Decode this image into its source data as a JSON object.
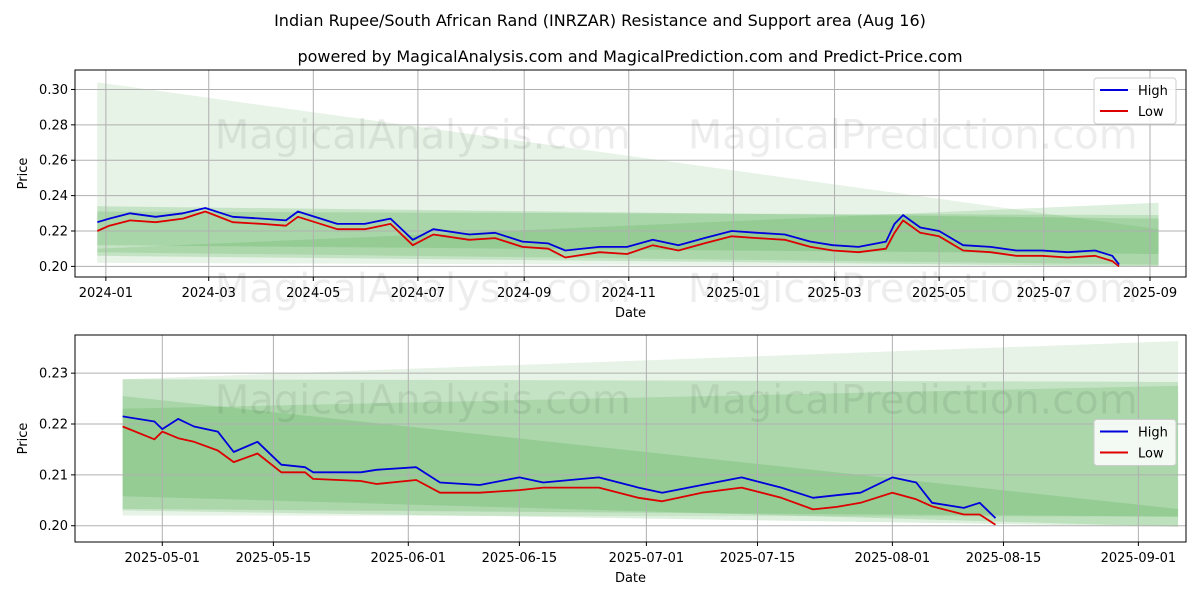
{
  "title": "Indian Rupee/South African Rand (INRZAR) Resistance and Support area (Aug 16)",
  "subtitle": "powered by MagicalAnalysis.com and MagicalPrediction.com and Predict-Price.com",
  "watermarks": [
    "MagicalAnalysis.com",
    "MagicalPrediction.com"
  ],
  "colors": {
    "high": "#0000dd",
    "low": "#dd0000",
    "band": "#2e9a2e",
    "grid": "#b0b0b0"
  },
  "chart_data": [
    {
      "type": "line",
      "xlabel": "Date",
      "ylabel": "Price",
      "xlim": [
        "2023-12-14",
        "2025-09-22"
      ],
      "ylim": [
        0.194,
        0.311
      ],
      "x_ticks": [
        "2024-01-01",
        "2024-03-01",
        "2024-05-01",
        "2024-07-01",
        "2024-09-01",
        "2024-11-01",
        "2025-01-01",
        "2025-03-01",
        "2025-05-01",
        "2025-07-01",
        "2025-09-01"
      ],
      "x_tick_labels": [
        "2024-01",
        "2024-03",
        "2024-05",
        "2024-07",
        "2024-09",
        "2024-11",
        "2025-01",
        "2025-03",
        "2025-05",
        "2025-07",
        "2025-09"
      ],
      "y_ticks": [
        0.2,
        0.22,
        0.24,
        0.26,
        0.28,
        0.3
      ],
      "y_tick_labels": [
        "0.20",
        "0.22",
        "0.24",
        "0.26",
        "0.28",
        "0.30"
      ],
      "grid": true,
      "legend": "top-right",
      "series": [
        {
          "name": "High",
          "x": [
            "2023-12-27",
            "2024-01-03",
            "2024-01-15",
            "2024-01-30",
            "2024-02-15",
            "2024-02-28",
            "2024-03-15",
            "2024-04-01",
            "2024-04-15",
            "2024-04-22",
            "2024-05-15",
            "2024-05-31",
            "2024-06-15",
            "2024-06-28",
            "2024-07-10",
            "2024-07-31",
            "2024-08-15",
            "2024-08-31",
            "2024-09-15",
            "2024-09-25",
            "2024-10-15",
            "2024-10-31",
            "2024-11-15",
            "2024-11-30",
            "2024-12-15",
            "2024-12-31",
            "2025-01-15",
            "2025-01-31",
            "2025-02-15",
            "2025-02-28",
            "2025-03-15",
            "2025-03-31",
            "2025-04-05",
            "2025-04-10",
            "2025-04-20",
            "2025-05-01",
            "2025-05-15",
            "2025-05-31",
            "2025-06-15",
            "2025-06-30",
            "2025-07-15",
            "2025-07-31",
            "2025-08-10",
            "2025-08-14"
          ],
          "values": [
            0.225,
            0.227,
            0.23,
            0.228,
            0.23,
            0.233,
            0.228,
            0.227,
            0.226,
            0.231,
            0.224,
            0.224,
            0.227,
            0.215,
            0.221,
            0.218,
            0.219,
            0.214,
            0.213,
            0.209,
            0.211,
            0.211,
            0.215,
            0.212,
            0.216,
            0.22,
            0.219,
            0.218,
            0.214,
            0.212,
            0.211,
            0.214,
            0.224,
            0.229,
            0.222,
            0.22,
            0.212,
            0.211,
            0.209,
            0.209,
            0.208,
            0.209,
            0.206,
            0.201
          ]
        },
        {
          "name": "Low",
          "x": [
            "2023-12-27",
            "2024-01-03",
            "2024-01-15",
            "2024-01-30",
            "2024-02-15",
            "2024-02-28",
            "2024-03-15",
            "2024-04-01",
            "2024-04-15",
            "2024-04-22",
            "2024-05-15",
            "2024-05-31",
            "2024-06-15",
            "2024-06-28",
            "2024-07-10",
            "2024-07-31",
            "2024-08-15",
            "2024-08-31",
            "2024-09-15",
            "2024-09-25",
            "2024-10-15",
            "2024-10-31",
            "2024-11-15",
            "2024-11-30",
            "2024-12-15",
            "2024-12-31",
            "2025-01-15",
            "2025-01-31",
            "2025-02-15",
            "2025-02-28",
            "2025-03-15",
            "2025-03-31",
            "2025-04-05",
            "2025-04-10",
            "2025-04-20",
            "2025-05-01",
            "2025-05-15",
            "2025-05-31",
            "2025-06-15",
            "2025-06-30",
            "2025-07-15",
            "2025-07-31",
            "2025-08-10",
            "2025-08-14"
          ],
          "values": [
            0.22,
            0.223,
            0.226,
            0.225,
            0.227,
            0.231,
            0.225,
            0.224,
            0.223,
            0.228,
            0.221,
            0.221,
            0.224,
            0.212,
            0.218,
            0.215,
            0.216,
            0.211,
            0.21,
            0.205,
            0.208,
            0.207,
            0.212,
            0.209,
            0.213,
            0.217,
            0.216,
            0.215,
            0.211,
            0.209,
            0.208,
            0.21,
            0.219,
            0.226,
            0.219,
            0.217,
            0.209,
            0.208,
            0.206,
            0.206,
            0.205,
            0.206,
            0.203,
            0.2
          ]
        }
      ],
      "bands": [
        {
          "x": [
            "2023-12-27",
            "2025-09-06"
          ],
          "upper": [
            0.304,
            0.221
          ],
          "lower": [
            0.202,
            0.2
          ]
        },
        {
          "x": [
            "2023-12-27",
            "2025-09-06"
          ],
          "upper": [
            0.234,
            0.227
          ],
          "lower": [
            0.212,
            0.207
          ]
        },
        {
          "x": [
            "2023-12-27",
            "2025-09-06"
          ],
          "upper": [
            0.231,
            0.229
          ],
          "lower": [
            0.206,
            0.2
          ]
        },
        {
          "x": [
            "2023-12-27",
            "2025-09-06"
          ],
          "upper": [
            0.21,
            0.236
          ],
          "lower": [
            0.208,
            0.201
          ]
        }
      ]
    },
    {
      "type": "line",
      "xlabel": "Date",
      "ylabel": "Price",
      "xlim": [
        "2025-04-20",
        "2025-09-07"
      ],
      "ylim": [
        0.1968,
        0.2375
      ],
      "x_ticks": [
        "2025-05-01",
        "2025-05-15",
        "2025-06-01",
        "2025-06-15",
        "2025-07-01",
        "2025-07-15",
        "2025-08-01",
        "2025-08-15",
        "2025-09-01"
      ],
      "x_tick_labels": [
        "2025-05-01",
        "2025-05-15",
        "2025-06-01",
        "2025-06-15",
        "2025-07-01",
        "2025-07-15",
        "2025-08-01",
        "2025-08-15",
        "2025-09-01"
      ],
      "y_ticks": [
        0.2,
        0.21,
        0.22,
        0.23
      ],
      "y_tick_labels": [
        "0.20",
        "0.21",
        "0.22",
        "0.23"
      ],
      "grid": true,
      "legend": "center-right",
      "series": [
        {
          "name": "High",
          "x": [
            "2025-04-26",
            "2025-04-30",
            "2025-05-01",
            "2025-05-03",
            "2025-05-05",
            "2025-05-08",
            "2025-05-10",
            "2025-05-13",
            "2025-05-16",
            "2025-05-19",
            "2025-05-20",
            "2025-05-26",
            "2025-05-28",
            "2025-06-02",
            "2025-06-05",
            "2025-06-10",
            "2025-06-15",
            "2025-06-18",
            "2025-06-25",
            "2025-06-30",
            "2025-07-03",
            "2025-07-08",
            "2025-07-13",
            "2025-07-18",
            "2025-07-22",
            "2025-07-25",
            "2025-07-28",
            "2025-08-01",
            "2025-08-04",
            "2025-08-06",
            "2025-08-10",
            "2025-08-12",
            "2025-08-14"
          ],
          "values": [
            0.2215,
            0.2205,
            0.219,
            0.221,
            0.2195,
            0.2185,
            0.2145,
            0.2165,
            0.212,
            0.2115,
            0.2105,
            0.2105,
            0.211,
            0.2115,
            0.2085,
            0.208,
            0.2095,
            0.2085,
            0.2095,
            0.2075,
            0.2065,
            0.208,
            0.2095,
            0.2075,
            0.2055,
            0.206,
            0.2065,
            0.2095,
            0.2085,
            0.2045,
            0.2035,
            0.2045,
            0.2015
          ]
        },
        {
          "name": "Low",
          "x": [
            "2025-04-26",
            "2025-04-30",
            "2025-05-01",
            "2025-05-03",
            "2025-05-05",
            "2025-05-08",
            "2025-05-10",
            "2025-05-13",
            "2025-05-16",
            "2025-05-19",
            "2025-05-20",
            "2025-05-26",
            "2025-05-28",
            "2025-06-02",
            "2025-06-05",
            "2025-06-10",
            "2025-06-15",
            "2025-06-18",
            "2025-06-25",
            "2025-06-30",
            "2025-07-03",
            "2025-07-08",
            "2025-07-13",
            "2025-07-18",
            "2025-07-22",
            "2025-07-25",
            "2025-07-28",
            "2025-08-01",
            "2025-08-04",
            "2025-08-06",
            "2025-08-10",
            "2025-08-12",
            "2025-08-14"
          ],
          "values": [
            0.2195,
            0.217,
            0.2185,
            0.2172,
            0.2165,
            0.2148,
            0.2125,
            0.2142,
            0.2105,
            0.2105,
            0.2092,
            0.2088,
            0.2082,
            0.209,
            0.2065,
            0.2065,
            0.207,
            0.2075,
            0.2075,
            0.2055,
            0.2048,
            0.2065,
            0.2075,
            0.2055,
            0.2032,
            0.2037,
            0.2045,
            0.2065,
            0.2052,
            0.2038,
            0.2022,
            0.2022,
            0.2002
          ]
        }
      ],
      "bands": [
        {
          "x": [
            "2025-04-26",
            "2025-09-06"
          ],
          "upper": [
            0.2288,
            0.2363
          ],
          "lower": [
            0.202,
            0.2018
          ]
        },
        {
          "x": [
            "2025-04-26",
            "2025-09-06"
          ],
          "upper": [
            0.2288,
            0.2283
          ],
          "lower": [
            0.2033,
            0.2018
          ]
        },
        {
          "x": [
            "2025-04-26",
            "2025-09-06"
          ],
          "upper": [
            0.2255,
            0.2033
          ],
          "lower": [
            0.2058,
            0.1998
          ]
        },
        {
          "x": [
            "2025-04-26",
            "2025-09-06"
          ],
          "upper": [
            0.223,
            0.2275
          ],
          "lower": [
            0.203,
            0.1998
          ]
        }
      ]
    }
  ]
}
